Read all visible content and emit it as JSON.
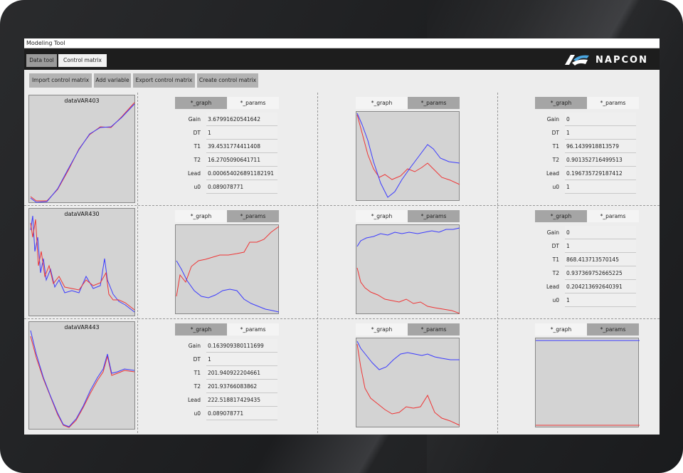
{
  "window": {
    "title": "Modeling Tool"
  },
  "tabs": {
    "data_tool": "Data tool",
    "control_matrix": "Control matrix"
  },
  "brand": {
    "name": "NAPCON"
  },
  "toolbar": {
    "import": "Import control matrix",
    "add": "Add variable",
    "export": "Export control matrix",
    "create": "Create control matrix"
  },
  "labels": {
    "graph": "*_graph",
    "params": "*_params"
  },
  "param_names": [
    "Gain",
    "DT",
    "T1",
    "T2",
    "Lead",
    "u0"
  ],
  "variables": [
    "dataVAR403",
    "dataVAR430",
    "dataVAR443"
  ],
  "params": {
    "r0c1": [
      "3.67991620541642",
      "1",
      "39.4531774411408",
      "16.2705090641711",
      "0.000654026891182191",
      "0.089078771"
    ],
    "r0c3": [
      "0",
      "1",
      "96.1439918813579",
      "0.901352716499513",
      "0.196735729187412",
      "1"
    ],
    "r1c3": [
      "0",
      "1",
      "868.413713570145",
      "0.937369752665225",
      "0.204213692640391",
      "1"
    ],
    "r2c1": [
      "0.163909380111699",
      "1",
      "201.940922204661",
      "201.93766083862",
      "222.518817429435",
      "0.089078771"
    ]
  },
  "colors": {
    "blue": "#3b3bff",
    "red": "#ef3535",
    "plot_bg": "#d3d3d3",
    "topbar": "#1d1d1d"
  }
}
